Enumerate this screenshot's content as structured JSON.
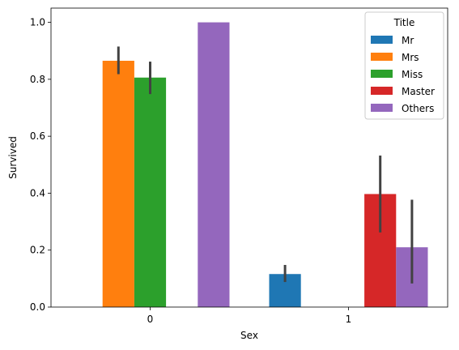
{
  "chart_data": {
    "type": "bar",
    "xlabel": "Sex",
    "ylabel": "Survived",
    "categories": [
      "0",
      "1"
    ],
    "ylim": [
      0,
      1.05
    ],
    "yticks": [
      "0.0",
      "0.2",
      "0.4",
      "0.6",
      "0.8",
      "1.0"
    ],
    "grid": false,
    "legend": {
      "title": "Title",
      "placement": "top-right"
    },
    "series": [
      {
        "name": "Mr",
        "color": "#1f77b4",
        "values": [
          null,
          0.116
        ],
        "ci": [
          null,
          [
            0.088,
            0.148
          ]
        ]
      },
      {
        "name": "Mrs",
        "color": "#ff7f0e",
        "values": [
          0.865,
          null
        ],
        "ci": [
          [
            0.818,
            0.915
          ],
          null
        ]
      },
      {
        "name": "Miss",
        "color": "#2ca02c",
        "values": [
          0.806,
          null
        ],
        "ci": [
          [
            0.748,
            0.862
          ],
          null
        ]
      },
      {
        "name": "Master",
        "color": "#d62728",
        "values": [
          null,
          0.397
        ],
        "ci": [
          null,
          [
            0.262,
            0.532
          ]
        ]
      },
      {
        "name": "Others",
        "color": "#9467bd",
        "values": [
          1.0,
          0.21
        ],
        "ci": [
          null,
          [
            0.083,
            0.377
          ]
        ]
      }
    ]
  }
}
